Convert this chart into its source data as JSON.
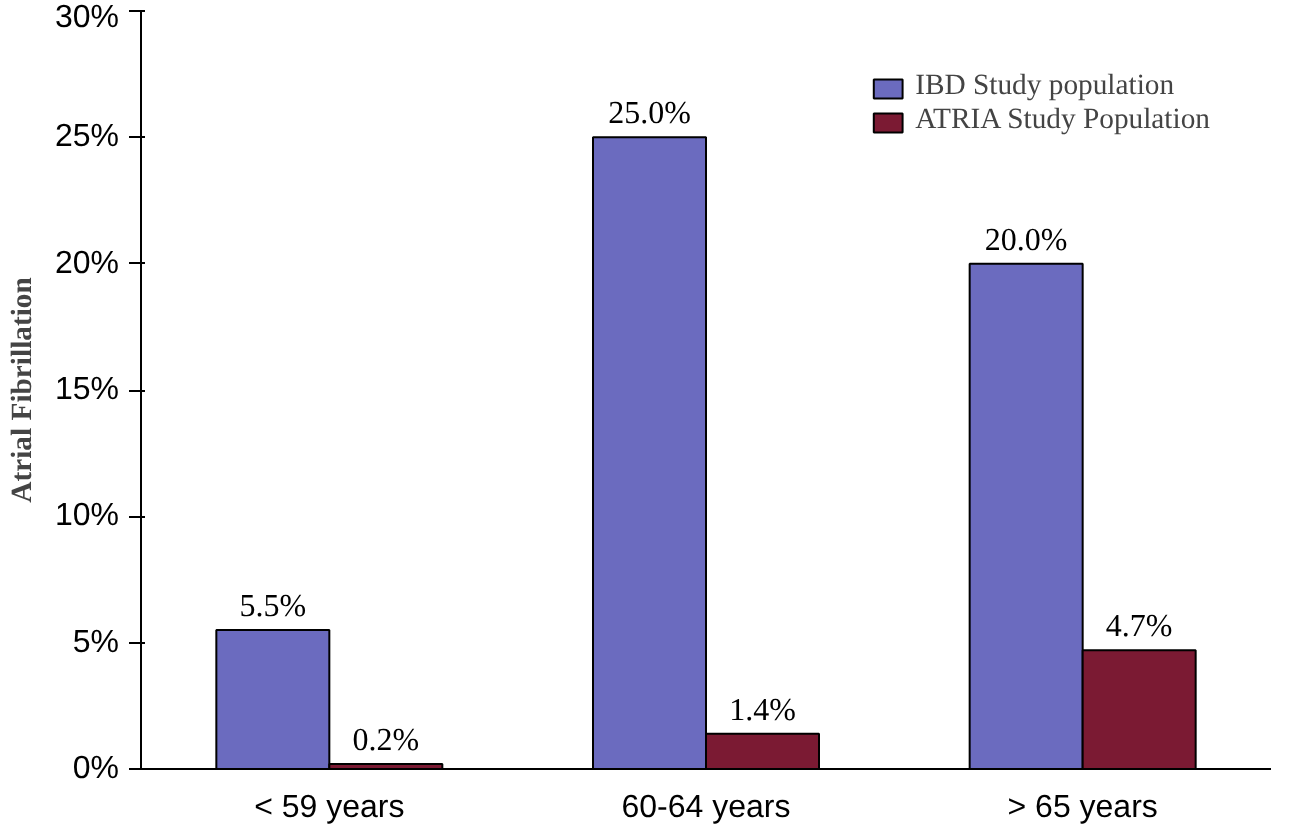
{
  "chart_data": {
    "type": "bar",
    "ylabel": "Atrial Fibrillation",
    "categories": [
      "< 59 years",
      "60-64 years",
      "> 65 years"
    ],
    "series": [
      {
        "name": "IBD Study population",
        "color": "#6b6bbf",
        "values": [
          5.5,
          25.0,
          20.0
        ],
        "value_labels": [
          "5.5%",
          "25.0%",
          "20.0%"
        ]
      },
      {
        "name": "ATRIA Study Population",
        "color": "#7b1a33",
        "values": [
          0.2,
          1.4,
          4.7
        ],
        "value_labels": [
          "0.2%",
          "1.4%",
          "4.7%"
        ]
      }
    ],
    "ylim": [
      0,
      30
    ],
    "yticks": [
      {
        "value": 0,
        "label": "0%"
      },
      {
        "value": 5,
        "label": "5%"
      },
      {
        "value": 10,
        "label": "10%"
      },
      {
        "value": 15,
        "label": "15%"
      },
      {
        "value": 20,
        "label": "20%"
      },
      {
        "value": 25,
        "label": "25%"
      },
      {
        "value": 30,
        "label": "30%"
      }
    ],
    "grid": false,
    "legend": "top right"
  }
}
